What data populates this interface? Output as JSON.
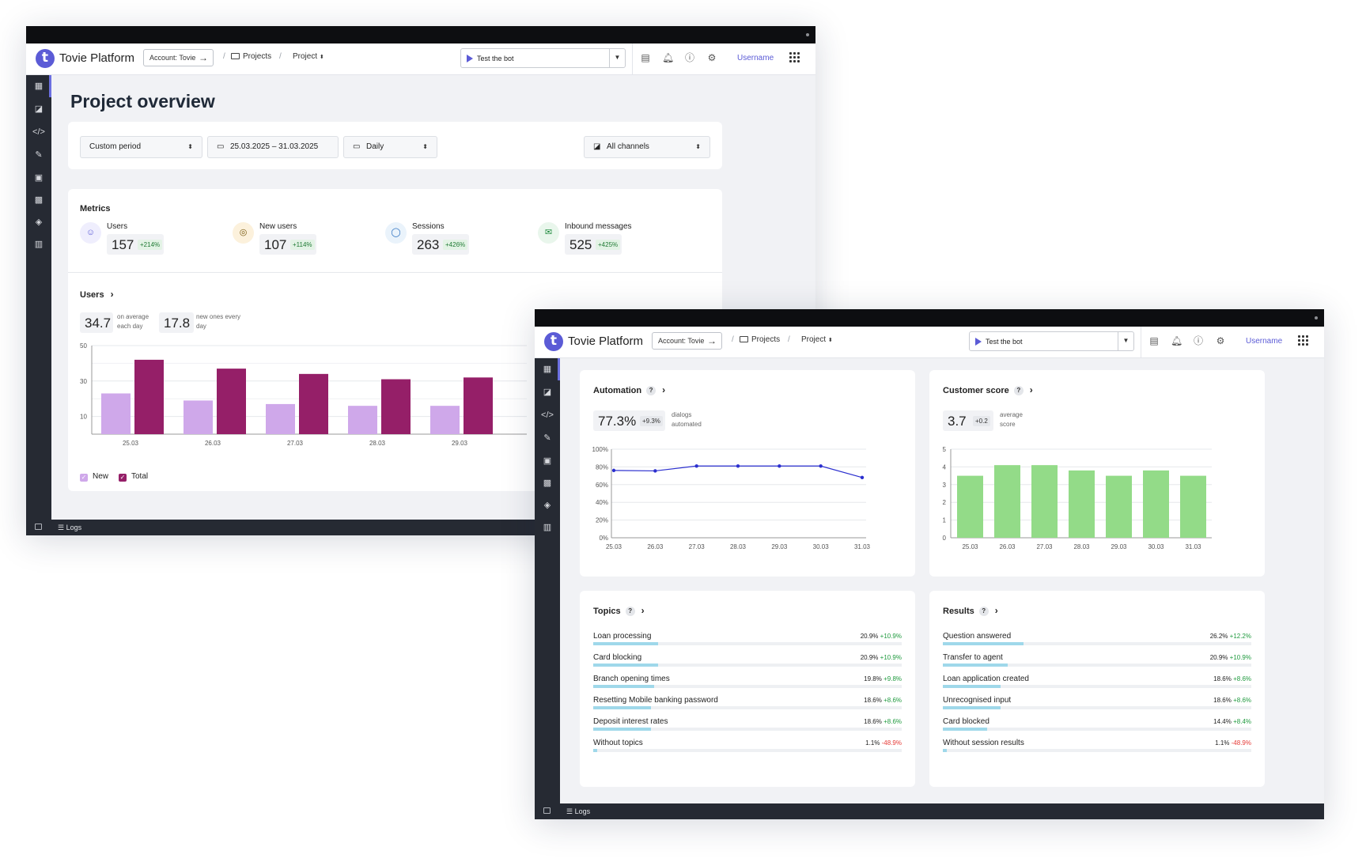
{
  "app": {
    "brand": "Tovie Platform",
    "logo_letter": "t",
    "account": "Account: Tovie",
    "crumb_projects": "Projects",
    "crumb_project": "Project",
    "test_bot": "Test the bot",
    "username": "Username",
    "logs": "Logs"
  },
  "overview": {
    "title": "Project overview",
    "filters": {
      "period": "Custom period",
      "dates": "25.03.2025 – 31.03.2025",
      "granularity": "Daily",
      "channels": "All channels"
    },
    "metrics_title": "Metrics",
    "metrics": [
      {
        "label": "Users",
        "value": "157",
        "change": "+214%"
      },
      {
        "label": "New users",
        "value": "107",
        "change": "+114%"
      },
      {
        "label": "Sessions",
        "value": "263",
        "change": "+426%"
      },
      {
        "label": "Inbound messages",
        "value": "525",
        "change": "+425%"
      }
    ],
    "users_title": "Users",
    "users_stats": [
      {
        "value": "34.7",
        "caption1": "on average",
        "caption2": "each day"
      },
      {
        "value": "17.8",
        "caption1": "new ones every",
        "caption2": "day"
      }
    ],
    "legend": {
      "new": "New",
      "total": "Total"
    }
  },
  "chart_data": [
    {
      "type": "bar",
      "categories": [
        "25.03",
        "26.03",
        "27.03",
        "28.03",
        "29.03"
      ],
      "yticks": [
        "10",
        "30",
        "50"
      ],
      "ylim": [
        0,
        50
      ],
      "series": [
        {
          "name": "New",
          "values": [
            23,
            19,
            17,
            16,
            16
          ]
        },
        {
          "name": "Total",
          "values": [
            42,
            37,
            34,
            31,
            32
          ]
        }
      ],
      "colors": {
        "New": "#cfa8ea",
        "Total": "#951f68"
      }
    },
    {
      "type": "line",
      "title": "Automation",
      "categories": [
        "25.03",
        "26.03",
        "27.03",
        "28.03",
        "29.03",
        "30.03",
        "31.03"
      ],
      "yticks": [
        "0%",
        "20%",
        "40%",
        "60%",
        "80%",
        "100%"
      ],
      "ylim": [
        0,
        100
      ],
      "values": [
        76,
        75.5,
        81,
        81,
        81,
        81,
        68
      ],
      "color": "#2b2fcf"
    },
    {
      "type": "bar",
      "title": "Customer score",
      "categories": [
        "25.03",
        "26.03",
        "27.03",
        "28.03",
        "29.03",
        "30.03",
        "31.03"
      ],
      "yticks": [
        "0",
        "1",
        "2",
        "3",
        "4",
        "5"
      ],
      "ylim": [
        0,
        5
      ],
      "values": [
        3.5,
        4.1,
        4.1,
        3.8,
        3.5,
        3.8,
        3.5
      ],
      "color": "#93db88"
    }
  ],
  "automation": {
    "title": "Automation",
    "value": "77.3%",
    "change": "+9.3%",
    "caption1": "dialogs",
    "caption2": "automated"
  },
  "score": {
    "title": "Customer score",
    "value": "3.7",
    "change": "+0.2",
    "caption1": "average",
    "caption2": "score"
  },
  "topics": {
    "title": "Topics",
    "rows": [
      {
        "name": "Loan processing",
        "pct": "20.9%",
        "delta": "+10.9%",
        "fill": 0.209,
        "neg": false
      },
      {
        "name": "Card blocking",
        "pct": "20.9%",
        "delta": "+10.9%",
        "fill": 0.209,
        "neg": false
      },
      {
        "name": "Branch opening times",
        "pct": "19.8%",
        "delta": "+9.8%",
        "fill": 0.198,
        "neg": false
      },
      {
        "name": "Resetting Mobile banking password",
        "pct": "18.6%",
        "delta": "+8.6%",
        "fill": 0.186,
        "neg": false
      },
      {
        "name": "Deposit interest rates",
        "pct": "18.6%",
        "delta": "+8.6%",
        "fill": 0.186,
        "neg": false
      },
      {
        "name": "Without topics",
        "pct": "1.1%",
        "delta": "-48.9%",
        "fill": 0.011,
        "neg": true
      }
    ]
  },
  "results": {
    "title": "Results",
    "rows": [
      {
        "name": "Question answered",
        "pct": "26.2%",
        "delta": "+12.2%",
        "fill": 0.262,
        "neg": false
      },
      {
        "name": "Transfer to agent",
        "pct": "20.9%",
        "delta": "+10.9%",
        "fill": 0.209,
        "neg": false
      },
      {
        "name": "Loan application created",
        "pct": "18.6%",
        "delta": "+8.6%",
        "fill": 0.186,
        "neg": false
      },
      {
        "name": "Unrecognised input",
        "pct": "18.6%",
        "delta": "+8.6%",
        "fill": 0.186,
        "neg": false
      },
      {
        "name": "Card blocked",
        "pct": "14.4%",
        "delta": "+8.4%",
        "fill": 0.144,
        "neg": false
      },
      {
        "name": "Without session results",
        "pct": "1.1%",
        "delta": "-48.9%",
        "fill": 0.011,
        "neg": true
      }
    ]
  },
  "icons": {
    "sidebar": [
      "table-icon",
      "rss-icon",
      "code-icon",
      "wrench-icon",
      "lock-icon",
      "contact-icon",
      "shield-icon",
      "chart-icon"
    ]
  }
}
